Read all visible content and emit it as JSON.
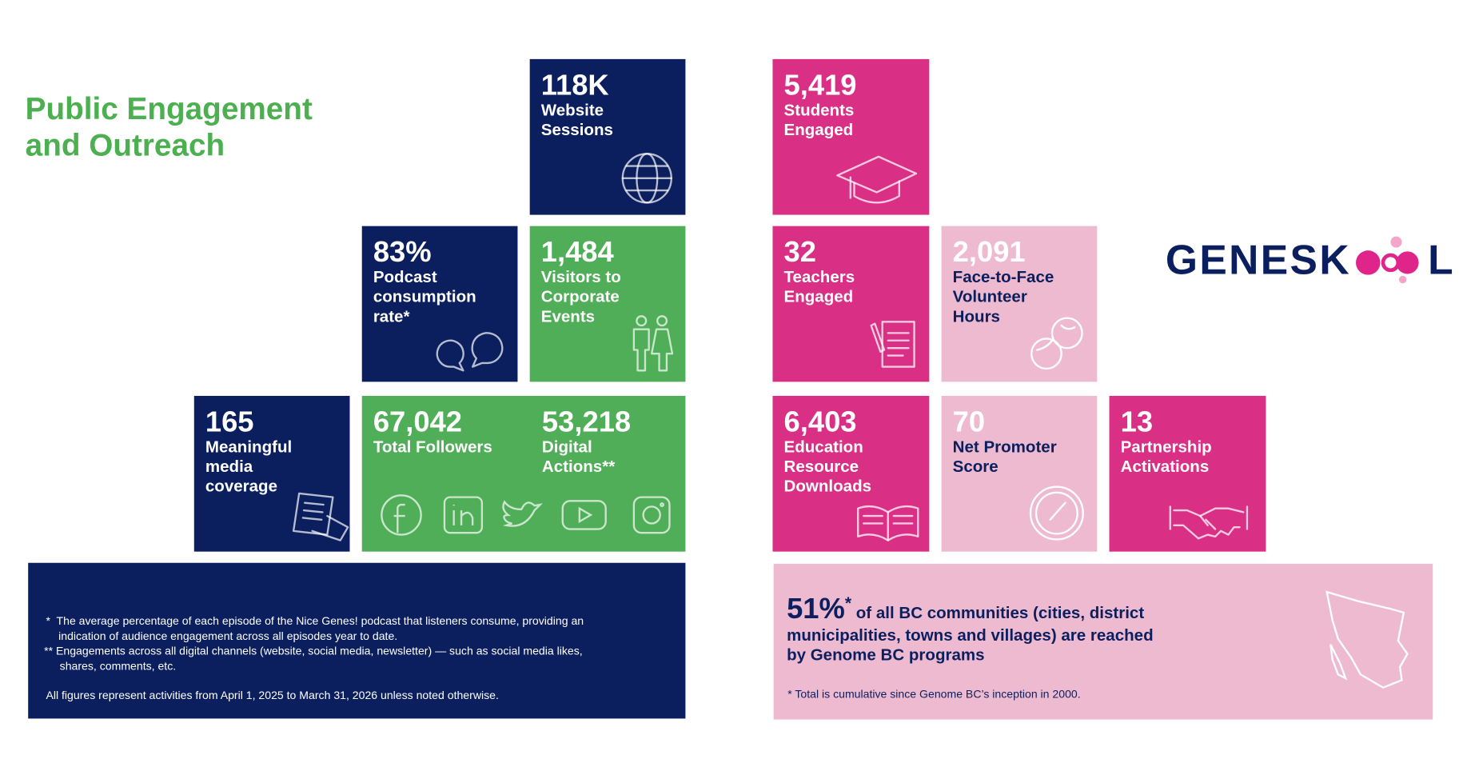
{
  "title": "Public Engagement\nand Outreach",
  "tiles": [
    {
      "value": "118K",
      "label": "Website\nSessions"
    },
    {
      "value": "83%",
      "label": "Podcast\nconsumption\nrate*"
    },
    {
      "value": "1,484",
      "label": "Visitors to\nCorporate\nEvents"
    },
    {
      "value": "165",
      "label": "Meaningful\nmedia\ncoverage"
    },
    {
      "value": "67,042",
      "label": "Total Followers"
    },
    {
      "value": "53,218",
      "label": "Digital\nActions**"
    },
    {
      "value": "5,419",
      "label": "Students\nEngaged"
    },
    {
      "value": "32",
      "label": "Teachers\nEngaged"
    },
    {
      "value": "2,091",
      "label": "Face-to-Face\nVolunteer\nHours"
    },
    {
      "value": "6,403",
      "label": "Education\nResource\nDownloads"
    },
    {
      "value": "70",
      "label": "Net Promoter\nScore"
    },
    {
      "value": "13",
      "label": "Partnership\nActivations"
    }
  ],
  "footnotes": [
    "*  The average percentage of each episode of the Nice Genes! podcast that listeners consume, providing an\n    indication of audience engagement across all episodes year to date.",
    "** Engagements across all digital channels (website, social media, newsletter) — such as social media likes,\n     shares, comments, etc.",
    "All figures represent activities from April 1, 2025 to March 31, 2026 unless noted otherwise."
  ],
  "communities": {
    "value": "51%",
    "marker": "*",
    "text": " of all BC communities (cities, district\nmunicipalities, towns and villages) are reached\nby Genome BC programs",
    "note": "* Total is cumulative since Genome BC’s inception in 2000."
  },
  "logo": {
    "left": "GENESK",
    "right": "L"
  }
}
